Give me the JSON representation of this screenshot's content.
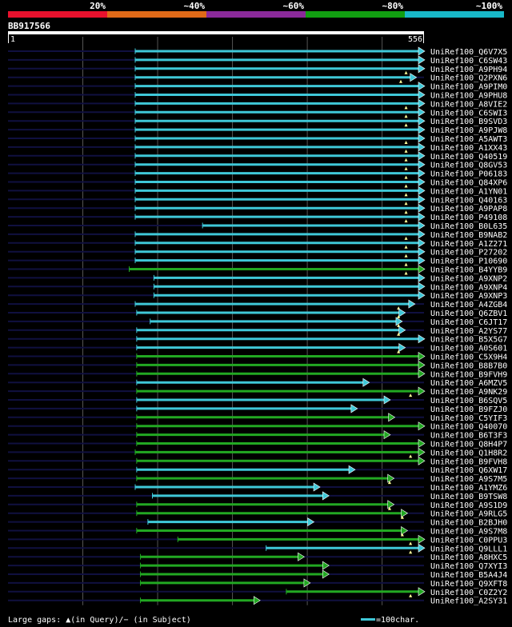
{
  "chart_data": {
    "type": "alignment",
    "query_id": "BB917566",
    "query_start": "1",
    "query_end": "556",
    "query_length": 556,
    "identity_scale": [
      {
        "label": "20%",
        "color": "#e8112d"
      },
      {
        "label": "~40%",
        "color": "#e06a18"
      },
      {
        "label": "~60%",
        "color": "#8b2a9a"
      },
      {
        "label": "~80%",
        "color": "#119e11"
      },
      {
        "label": "~100%",
        "color": "#18b8c8"
      }
    ],
    "colors": {
      "cyan": "#3fc8d8",
      "green": "#22a822",
      "query_bar": "#ffffff",
      "track": "#101040",
      "grid": "#555555",
      "gap": "#ffff99"
    },
    "grid_positions": [
      100,
      200,
      300,
      400,
      500
    ],
    "hits": [
      {
        "name": "UniRef100_Q6V7X5",
        "start": 170,
        "end": 556,
        "color": "cyan",
        "gaps": []
      },
      {
        "name": "UniRef100_C6SW43",
        "start": 170,
        "end": 556,
        "color": "cyan",
        "gaps": []
      },
      {
        "name": "UniRef100_A9PH94",
        "start": 170,
        "end": 556,
        "color": "cyan",
        "gaps": [
          532
        ]
      },
      {
        "name": "UniRef100_Q2PXN6",
        "start": 170,
        "end": 545,
        "color": "cyan",
        "gaps": [
          525
        ]
      },
      {
        "name": "UniRef100_A9PIM0",
        "start": 170,
        "end": 556,
        "color": "cyan",
        "gaps": []
      },
      {
        "name": "UniRef100_A9PHU8",
        "start": 170,
        "end": 556,
        "color": "cyan",
        "gaps": []
      },
      {
        "name": "UniRef100_A8VIE2",
        "start": 170,
        "end": 556,
        "color": "cyan",
        "gaps": [
          532
        ]
      },
      {
        "name": "UniRef100_C6SWI3",
        "start": 170,
        "end": 556,
        "color": "cyan",
        "gaps": [
          532
        ]
      },
      {
        "name": "UniRef100_B9SVD3",
        "start": 170,
        "end": 556,
        "color": "cyan",
        "gaps": [
          532
        ]
      },
      {
        "name": "UniRef100_A9PJW8",
        "start": 170,
        "end": 556,
        "color": "cyan",
        "gaps": []
      },
      {
        "name": "UniRef100_A5AWT3",
        "start": 170,
        "end": 556,
        "color": "cyan",
        "gaps": [
          532
        ]
      },
      {
        "name": "UniRef100_A1XX43",
        "start": 170,
        "end": 556,
        "color": "cyan",
        "gaps": [
          532
        ]
      },
      {
        "name": "UniRef100_Q40519",
        "start": 170,
        "end": 556,
        "color": "cyan",
        "gaps": [
          532
        ]
      },
      {
        "name": "UniRef100_Q8GV53",
        "start": 170,
        "end": 556,
        "color": "cyan",
        "gaps": [
          532
        ]
      },
      {
        "name": "UniRef100_P06183",
        "start": 170,
        "end": 556,
        "color": "cyan",
        "gaps": [
          532
        ]
      },
      {
        "name": "UniRef100_Q84XP6",
        "start": 170,
        "end": 556,
        "color": "cyan",
        "gaps": [
          532
        ]
      },
      {
        "name": "UniRef100_A1YN01",
        "start": 170,
        "end": 556,
        "color": "cyan",
        "gaps": [
          532
        ]
      },
      {
        "name": "UniRef100_Q40163",
        "start": 170,
        "end": 556,
        "color": "cyan",
        "gaps": [
          532
        ]
      },
      {
        "name": "UniRef100_A9PAP8",
        "start": 170,
        "end": 556,
        "color": "cyan",
        "gaps": [
          532
        ]
      },
      {
        "name": "UniRef100_P49108",
        "start": 170,
        "end": 556,
        "color": "cyan",
        "gaps": [
          532
        ]
      },
      {
        "name": "UniRef100_B0L635",
        "start": 260,
        "end": 556,
        "color": "cyan",
        "gaps": []
      },
      {
        "name": "UniRef100_B9NAB2",
        "start": 170,
        "end": 556,
        "color": "cyan",
        "gaps": [
          532
        ]
      },
      {
        "name": "UniRef100_A1Z271",
        "start": 170,
        "end": 556,
        "color": "cyan",
        "gaps": [
          532
        ]
      },
      {
        "name": "UniRef100_P27202",
        "start": 170,
        "end": 556,
        "color": "cyan",
        "gaps": [
          532
        ]
      },
      {
        "name": "UniRef100_P10690",
        "start": 170,
        "end": 556,
        "color": "cyan",
        "gaps": [
          532
        ]
      },
      {
        "name": "UniRef100_B4YYB9",
        "start": 162,
        "end": 556,
        "color": "green",
        "gaps": [
          532
        ]
      },
      {
        "name": "UniRef100_A9XNP2",
        "start": 195,
        "end": 556,
        "color": "cyan",
        "gaps": []
      },
      {
        "name": "UniRef100_A9XNP4",
        "start": 195,
        "end": 556,
        "color": "cyan",
        "gaps": []
      },
      {
        "name": "UniRef100_A9XNP3",
        "start": 195,
        "end": 556,
        "color": "cyan",
        "gaps": []
      },
      {
        "name": "UniRef100_A4ZGB4",
        "start": 170,
        "end": 543,
        "color": "cyan",
        "gaps": [
          522
        ]
      },
      {
        "name": "UniRef100_Q6ZBV1",
        "start": 172,
        "end": 530,
        "color": "cyan",
        "gaps": [
          522
        ]
      },
      {
        "name": "UniRef100_C6JT17",
        "start": 190,
        "end": 526,
        "color": "cyan",
        "gaps": [
          522
        ]
      },
      {
        "name": "UniRef100_A2YS77",
        "start": 172,
        "end": 530,
        "color": "cyan",
        "gaps": [
          522
        ]
      },
      {
        "name": "UniRef100_B5X5G7",
        "start": 172,
        "end": 556,
        "color": "cyan",
        "gaps": []
      },
      {
        "name": "UniRef100_A0S601",
        "start": 172,
        "end": 530,
        "color": "cyan",
        "gaps": [
          522
        ]
      },
      {
        "name": "UniRef100_C5X9H4",
        "start": 172,
        "end": 556,
        "color": "green",
        "gaps": []
      },
      {
        "name": "UniRef100_B8B7B0",
        "start": 172,
        "end": 556,
        "color": "green",
        "gaps": []
      },
      {
        "name": "UniRef100_B9FVH9",
        "start": 172,
        "end": 556,
        "color": "green",
        "gaps": []
      },
      {
        "name": "UniRef100_A6MZV5",
        "start": 172,
        "end": 482,
        "color": "cyan",
        "gaps": []
      },
      {
        "name": "UniRef100_A9NK29",
        "start": 172,
        "end": 556,
        "color": "green",
        "gaps": [
          538
        ]
      },
      {
        "name": "UniRef100_B6SQV5",
        "start": 172,
        "end": 510,
        "color": "cyan",
        "gaps": []
      },
      {
        "name": "UniRef100_B9FZJ0",
        "start": 172,
        "end": 466,
        "color": "cyan",
        "gaps": []
      },
      {
        "name": "UniRef100_C5YIF3",
        "start": 172,
        "end": 516,
        "color": "green",
        "gaps": []
      },
      {
        "name": "UniRef100_Q40070",
        "start": 172,
        "end": 556,
        "color": "green",
        "gaps": []
      },
      {
        "name": "UniRef100_B6T3F3",
        "start": 172,
        "end": 510,
        "color": "green",
        "gaps": []
      },
      {
        "name": "UniRef100_Q8H4P7",
        "start": 172,
        "end": 556,
        "color": "green",
        "gaps": []
      },
      {
        "name": "UniRef100_Q1H8R2",
        "start": 170,
        "end": 556,
        "color": "green",
        "gaps": [
          538
        ]
      },
      {
        "name": "UniRef100_B9FVH8",
        "start": 172,
        "end": 556,
        "color": "green",
        "gaps": []
      },
      {
        "name": "UniRef100_Q6XW17",
        "start": 172,
        "end": 463,
        "color": "cyan",
        "gaps": []
      },
      {
        "name": "UniRef100_A9S7M5",
        "start": 172,
        "end": 515,
        "color": "green",
        "gaps": [
          510
        ]
      },
      {
        "name": "UniRef100_A1YMZ6",
        "start": 170,
        "end": 416,
        "color": "cyan",
        "gaps": []
      },
      {
        "name": "UniRef100_B9TSW8",
        "start": 193,
        "end": 428,
        "color": "cyan",
        "gaps": []
      },
      {
        "name": "UniRef100_A9S1D9",
        "start": 172,
        "end": 515,
        "color": "green",
        "gaps": [
          510
        ]
      },
      {
        "name": "UniRef100_A9RLG5",
        "start": 172,
        "end": 533,
        "color": "green",
        "gaps": [
          527
        ]
      },
      {
        "name": "UniRef100_B2BJH0",
        "start": 187,
        "end": 408,
        "color": "cyan",
        "gaps": []
      },
      {
        "name": "UniRef100_A9S7M8",
        "start": 172,
        "end": 533,
        "color": "green",
        "gaps": [
          527
        ]
      },
      {
        "name": "UniRef100_C0PPU3",
        "start": 227,
        "end": 556,
        "color": "green",
        "gaps": [
          538
        ]
      },
      {
        "name": "UniRef100_Q9LLL1",
        "start": 345,
        "end": 556,
        "color": "cyan",
        "gaps": [
          538
        ]
      },
      {
        "name": "UniRef100_A8HXC5",
        "start": 177,
        "end": 395,
        "color": "green",
        "gaps": []
      },
      {
        "name": "UniRef100_Q7XYI3",
        "start": 177,
        "end": 428,
        "color": "green",
        "gaps": []
      },
      {
        "name": "UniRef100_B5A4J4",
        "start": 177,
        "end": 428,
        "color": "green",
        "gaps": []
      },
      {
        "name": "UniRef100_Q9XFT8",
        "start": 177,
        "end": 403,
        "color": "green",
        "gaps": []
      },
      {
        "name": "UniRef100_C0Z2Y2",
        "start": 372,
        "end": 556,
        "color": "green",
        "gaps": [
          538
        ]
      },
      {
        "name": "UniRef100_A2SY31",
        "start": 177,
        "end": 336,
        "color": "green",
        "gaps": []
      }
    ],
    "footer_left": "Large gaps: ▲(in Query)/− (in Subject)",
    "footer_right": "=100char."
  }
}
